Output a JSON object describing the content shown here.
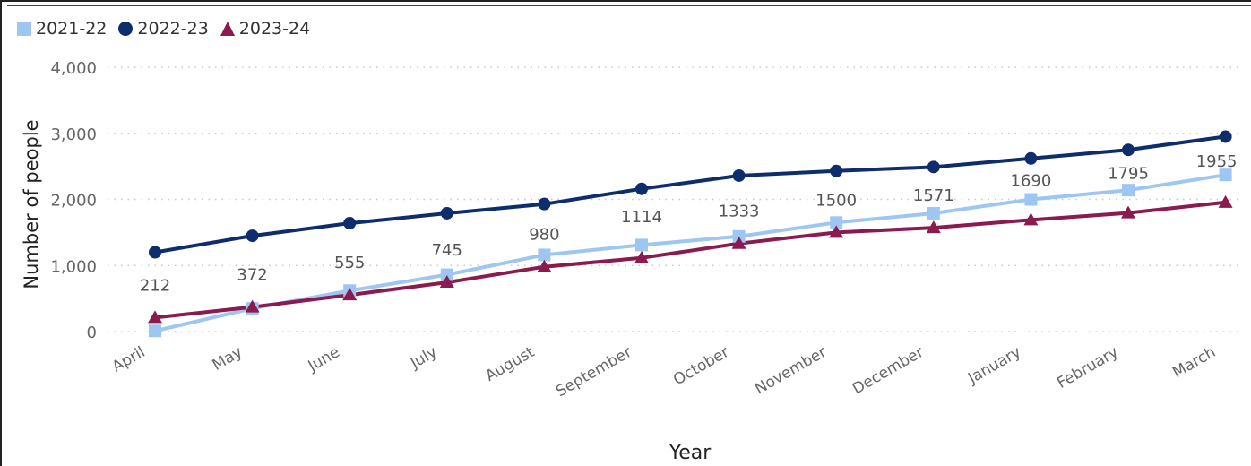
{
  "chart_data": {
    "type": "line",
    "xlabel": "Year",
    "ylabel": "Number of people",
    "ylim": [
      0,
      4000
    ],
    "yticks": [
      0,
      1000,
      2000,
      3000,
      4000
    ],
    "ytick_labels": [
      "0",
      "1,000",
      "2,000",
      "3,000",
      "4,000"
    ],
    "grid": "horizontal dotted",
    "legend_position": "top-left",
    "categories": [
      "April",
      "May",
      "June",
      "July",
      "August",
      "September",
      "October",
      "November",
      "December",
      "January",
      "February",
      "March"
    ],
    "series": [
      {
        "name": "2021-22",
        "color": "#9ec6f3",
        "marker": "square",
        "values": [
          10,
          350,
          620,
          860,
          1160,
          1310,
          1440,
          1650,
          1790,
          2000,
          2140,
          2370
        ]
      },
      {
        "name": "2022-23",
        "color": "#0d2d6c",
        "marker": "circle",
        "values": [
          1200,
          1450,
          1640,
          1790,
          1930,
          2160,
          2360,
          2430,
          2490,
          2620,
          2750,
          2950
        ]
      },
      {
        "name": "2023-24",
        "color": "#8b1a4e",
        "marker": "triangle",
        "values": [
          212,
          372,
          555,
          745,
          980,
          1114,
          1333,
          1500,
          1571,
          1690,
          1795,
          1955
        ],
        "data_labels": [
          "212",
          "372",
          "555",
          "745",
          "980",
          "1114",
          "1333",
          "1500",
          "1571",
          "1690",
          "1795",
          "1955"
        ]
      }
    ]
  }
}
